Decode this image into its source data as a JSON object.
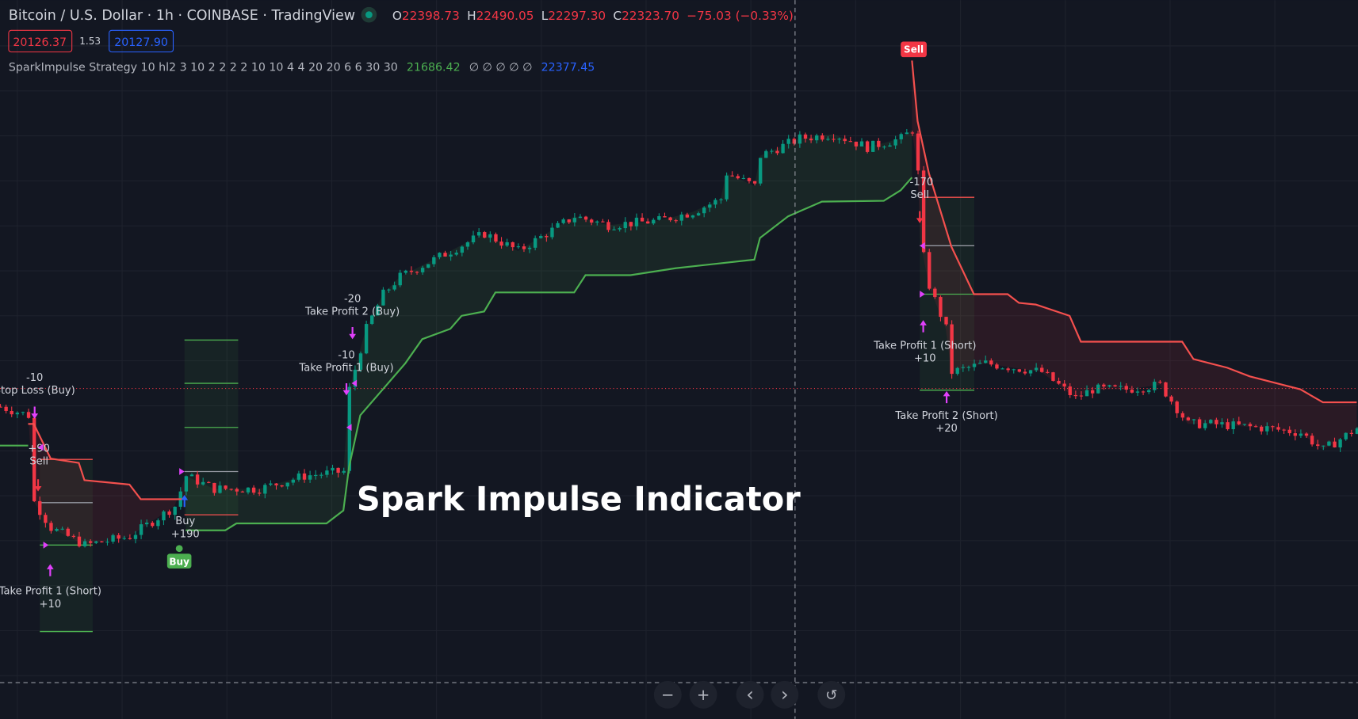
{
  "header": {
    "title": "Bitcoin / U.S. Dollar · 1h · COINBASE · TradingView",
    "ohlc": {
      "o_label": "O",
      "o": "22398.73",
      "h_label": "H",
      "h": "22490.05",
      "l_label": "L",
      "l": "22297.30",
      "c_label": "C",
      "c": "22323.70",
      "change": "−75.03 (−0.33%)"
    },
    "sell_price": "20126.37",
    "spread": "1.53",
    "buy_price": "20127.90",
    "indicator_name": "SparkImpulse Strategy 10 hl2 3 10 2 2 2 2 10 10 4 4 20 20 6 6 30 30",
    "indicator_v1": "21686.42",
    "indicator_empty": "∅ ∅ ∅ ∅ ∅",
    "indicator_v2": "22377.45"
  },
  "colors": {
    "background": "#131722",
    "up": "#089981",
    "down": "#f23645",
    "support": "#4caf50",
    "resistance": "#f4504e",
    "signal_marker": "#e040fb",
    "buy_label": "#4caf50",
    "sell_label": "#f23645",
    "blue": "#2962ff"
  },
  "watermark": "Spark Impulse Indicator",
  "signals": {
    "stop_loss_buy": {
      "value": "-10",
      "label": "Stop Loss (Buy)"
    },
    "sell_1": {
      "value": "+90",
      "label": "Sell"
    },
    "tp1_short_1": {
      "label": "Take Profit 1 (Short)",
      "value": "+10"
    },
    "buy": {
      "label": "Buy",
      "value": "+190",
      "badge": "Buy"
    },
    "tp1_buy": {
      "value": "-10",
      "label": "Take Profit 1 (Buy)"
    },
    "tp2_buy": {
      "value": "-20",
      "label": "Take Profit 2 (Buy)"
    },
    "sell_badge": "Sell",
    "sell_2": {
      "value": "-170",
      "label": "Sell"
    },
    "tp1_short_2": {
      "label": "Take Profit 1 (Short)",
      "value": "+10"
    },
    "tp2_short": {
      "label": "Take Profit 2 (Short)",
      "value": "+20"
    }
  },
  "toolbar": {
    "zoom_out": "−",
    "zoom_in": "+",
    "scroll_left": "‹",
    "scroll_right": "›",
    "reset": "↺"
  },
  "chart_data": {
    "type": "candlestick",
    "symbol": "BTCUSD",
    "interval": "1h",
    "x_unit": "bar index",
    "close_path": [
      [
        0,
        19960
      ],
      [
        5,
        19882
      ],
      [
        6,
        19094
      ],
      [
        9,
        18857
      ],
      [
        15,
        18700
      ],
      [
        23,
        18778
      ],
      [
        31,
        19054
      ],
      [
        33,
        19330
      ],
      [
        38,
        19212
      ],
      [
        46,
        19212
      ],
      [
        54,
        19330
      ],
      [
        61,
        19370
      ],
      [
        62,
        20118
      ],
      [
        65,
        20670
      ],
      [
        68,
        20985
      ],
      [
        71,
        21143
      ],
      [
        77,
        21300
      ],
      [
        86,
        21537
      ],
      [
        92,
        21379
      ],
      [
        102,
        21694
      ],
      [
        108,
        21615
      ],
      [
        117,
        21655
      ],
      [
        123,
        21734
      ],
      [
        128,
        21852
      ],
      [
        129,
        22088
      ],
      [
        134,
        21970
      ],
      [
        135,
        22246
      ],
      [
        142,
        22403
      ],
      [
        148,
        22443
      ],
      [
        154,
        22324
      ],
      [
        160,
        22403
      ],
      [
        162,
        22482
      ],
      [
        163,
        22088
      ],
      [
        163.5,
        21458
      ],
      [
        165,
        21064
      ],
      [
        168,
        20670
      ],
      [
        169,
        20276
      ],
      [
        175,
        20355
      ],
      [
        185,
        20276
      ],
      [
        191,
        20039
      ],
      [
        194,
        20118
      ],
      [
        200,
        20118
      ],
      [
        206,
        20158
      ],
      [
        211,
        19803
      ],
      [
        215,
        19803
      ],
      [
        225,
        19764
      ],
      [
        231,
        19724
      ],
      [
        235,
        19567
      ],
      [
        241,
        19764
      ]
    ],
    "trailing_support": [
      [
        0,
        19606
      ],
      [
        5,
        19606
      ]
    ],
    "trailing_resistance_1": [
      [
        5,
        19803
      ],
      [
        6,
        19803
      ],
      [
        9,
        19488
      ],
      [
        14,
        19448
      ],
      [
        15,
        19291
      ],
      [
        23,
        19251
      ],
      [
        25,
        19117
      ],
      [
        33,
        19117
      ]
    ],
    "trailing_support_2": [
      [
        33,
        18834
      ],
      [
        40,
        18834
      ],
      [
        42,
        18897
      ],
      [
        58,
        18897
      ],
      [
        61,
        19015
      ],
      [
        62,
        19409
      ],
      [
        64,
        19882
      ],
      [
        68,
        20118
      ],
      [
        72,
        20355
      ],
      [
        75,
        20575
      ],
      [
        80,
        20670
      ],
      [
        82,
        20788
      ],
      [
        86,
        20827
      ],
      [
        88,
        21001
      ],
      [
        102,
        21001
      ],
      [
        104,
        21158
      ],
      [
        112,
        21158
      ],
      [
        120,
        21221
      ],
      [
        134,
        21300
      ],
      [
        135,
        21497
      ],
      [
        140,
        21694
      ],
      [
        146,
        21828
      ],
      [
        157,
        21836
      ],
      [
        160,
        21931
      ],
      [
        162,
        22049
      ]
    ],
    "trailing_resistance_2": [
      [
        162,
        23113
      ],
      [
        163,
        22561
      ],
      [
        165,
        22088
      ],
      [
        169,
        21418
      ],
      [
        173,
        20985
      ],
      [
        179,
        20985
      ],
      [
        181,
        20906
      ],
      [
        184,
        20890
      ],
      [
        190,
        20788
      ],
      [
        192,
        20552
      ],
      [
        210,
        20552
      ],
      [
        212,
        20394
      ],
      [
        218,
        20315
      ],
      [
        222,
        20236
      ],
      [
        231,
        20118
      ],
      [
        235,
        20000
      ],
      [
        241,
        20000
      ]
    ],
    "current_price": 20126.37,
    "ohlc_hovered": {
      "open": 22398.73,
      "high": 22490.05,
      "low": 22297.3,
      "close": 22323.7
    }
  }
}
